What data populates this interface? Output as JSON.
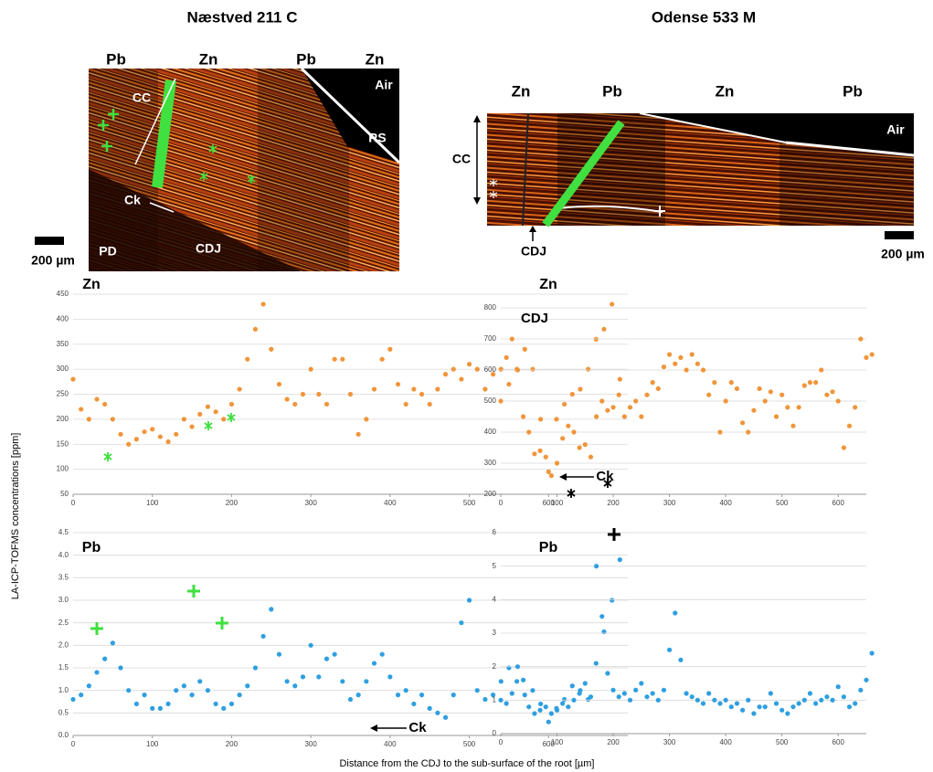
{
  "figure": {
    "ylabel": "LA-ICP-TOFMS concentrations [ppm]",
    "xlabel": "Distance from the CDJ to the sub-surface of the root [µm]"
  },
  "panels": [
    {
      "title": "Næstved 211 C",
      "column_labels": [
        "Pb",
        "Zn",
        "Pb",
        "Zn"
      ],
      "labels": [
        "CC",
        "Ck",
        "PD",
        "CDJ",
        "Air",
        "RS"
      ],
      "scale": "200 µm"
    },
    {
      "title": "Odense 533 M",
      "column_labels": [
        "Zn",
        "Pb",
        "Zn",
        "Pb"
      ],
      "labels": [
        "CC",
        "CDJ",
        "Air"
      ],
      "scale": "200 µm"
    }
  ],
  "chart_data": [
    {
      "type": "scatter",
      "title": "Zn",
      "color": "#f0953a",
      "grid": true,
      "annotation": "Ck",
      "x": [
        0,
        10,
        20,
        30,
        40,
        50,
        60,
        70,
        80,
        90,
        100,
        110,
        120,
        130,
        140,
        150,
        160,
        170,
        180,
        190,
        200,
        210,
        220,
        230,
        240,
        250,
        260,
        270,
        280,
        290,
        300,
        310,
        320,
        330,
        340,
        350,
        360,
        370,
        380,
        390,
        400,
        410,
        420,
        430,
        440,
        450,
        460,
        470,
        480,
        490,
        500,
        510,
        520,
        530,
        540,
        550,
        560,
        570,
        580,
        590,
        600,
        610,
        620,
        630,
        640,
        650,
        660,
        670,
        680,
        690
      ],
      "values": [
        280,
        220,
        200,
        240,
        230,
        200,
        170,
        150,
        160,
        175,
        180,
        165,
        155,
        170,
        200,
        185,
        210,
        225,
        215,
        200,
        230,
        260,
        320,
        380,
        430,
        340,
        270,
        240,
        230,
        250,
        300,
        250,
        230,
        320,
        320,
        250,
        170,
        200,
        260,
        320,
        340,
        270,
        230,
        260,
        250,
        230,
        260,
        290,
        300,
        280,
        310,
        300,
        260,
        290,
        300,
        270,
        300,
        340,
        300,
        200,
        95,
        200,
        230,
        250,
        260,
        300,
        360,
        380,
        430,
        280
      ],
      "xlim": [
        0,
        700
      ],
      "ylim": [
        50,
        450
      ],
      "xticks": [
        0,
        100,
        200,
        300,
        400,
        500,
        600
      ],
      "yticks": [
        50,
        100,
        150,
        200,
        250,
        300,
        350,
        400,
        450
      ]
    },
    {
      "type": "scatter",
      "title": "Zn",
      "color": "#f0953a",
      "grid": true,
      "annotation": "CDJ",
      "x": [
        0,
        10,
        20,
        30,
        40,
        50,
        60,
        70,
        80,
        90,
        100,
        110,
        120,
        130,
        140,
        150,
        160,
        170,
        180,
        190,
        200,
        210,
        220,
        230,
        240,
        250,
        260,
        270,
        280,
        290,
        300,
        310,
        320,
        330,
        340,
        350,
        360,
        370,
        380,
        390,
        400,
        410,
        420,
        430,
        440,
        450,
        460,
        470,
        480,
        490,
        500,
        510,
        520,
        530,
        540,
        550,
        560,
        570,
        580,
        590,
        600,
        610,
        620,
        630,
        640,
        650,
        660
      ],
      "values": [
        500,
        640,
        700,
        600,
        450,
        400,
        330,
        340,
        320,
        260,
        300,
        380,
        420,
        400,
        350,
        360,
        320,
        450,
        500,
        470,
        480,
        520,
        450,
        480,
        500,
        450,
        520,
        560,
        540,
        610,
        650,
        620,
        640,
        600,
        650,
        620,
        600,
        520,
        560,
        400,
        500,
        560,
        540,
        430,
        400,
        470,
        540,
        500,
        530,
        450,
        520,
        480,
        420,
        480,
        550,
        560,
        560,
        600,
        520,
        530,
        500,
        350,
        420,
        480,
        700,
        640,
        650
      ],
      "xlim": [
        0,
        650
      ],
      "ylim": [
        200,
        800
      ],
      "xticks": [
        0,
        100,
        200,
        300,
        400,
        500,
        600
      ],
      "yticks": [
        200,
        300,
        400,
        500,
        600,
        700,
        800
      ]
    },
    {
      "type": "scatter",
      "title": "Pb",
      "color": "#2e9fe0",
      "grid": true,
      "annotation": "Ck",
      "x": [
        0,
        10,
        20,
        30,
        40,
        50,
        60,
        70,
        80,
        90,
        100,
        110,
        120,
        130,
        140,
        150,
        160,
        170,
        180,
        190,
        200,
        210,
        220,
        230,
        240,
        250,
        260,
        270,
        280,
        290,
        300,
        310,
        320,
        330,
        340,
        350,
        360,
        370,
        380,
        390,
        400,
        410,
        420,
        430,
        440,
        450,
        460,
        470,
        480,
        490,
        500,
        510,
        520,
        530,
        540,
        550,
        560,
        570,
        580,
        590,
        600,
        610,
        620,
        630,
        640,
        650,
        660,
        670,
        680,
        690
      ],
      "values": [
        0.8,
        0.9,
        1.1,
        1.4,
        1.7,
        2.05,
        1.5,
        1.0,
        0.7,
        0.9,
        0.6,
        0.6,
        0.7,
        1.0,
        1.1,
        0.9,
        1.2,
        1.0,
        0.7,
        0.6,
        0.7,
        0.9,
        1.1,
        1.5,
        2.2,
        2.8,
        1.8,
        1.2,
        1.1,
        1.3,
        2.0,
        1.3,
        1.7,
        1.8,
        1.2,
        0.8,
        0.9,
        1.2,
        1.6,
        1.8,
        1.3,
        0.9,
        1.0,
        0.7,
        0.9,
        0.6,
        0.5,
        0.4,
        0.9,
        2.5,
        3.0,
        1.0,
        0.8,
        0.9,
        1.2,
        1.5,
        1.2,
        0.9,
        1.0,
        0.7,
        0.3,
        0.6,
        0.8,
        1.1,
        1.0,
        0.8,
        1.6,
        2.3,
        3.0,
        3.9
      ],
      "xlim": [
        0,
        700
      ],
      "ylim": [
        0,
        4.5
      ],
      "xticks": [
        0,
        100,
        200,
        300,
        400,
        500,
        600
      ],
      "yticks": [
        {
          "value": 0,
          "label": "0.0"
        },
        0.5,
        {
          "value": 1,
          "label": "1.0"
        },
        1.5,
        {
          "value": 2,
          "label": "2.0"
        },
        2.5,
        {
          "value": 3,
          "label": "3.0"
        },
        3.5,
        {
          "value": 4,
          "label": "4.0"
        },
        4.5
      ]
    },
    {
      "type": "scatter",
      "title": "Pb",
      "color": "#2e9fe0",
      "grid": true,
      "x": [
        0,
        10,
        20,
        30,
        40,
        50,
        60,
        70,
        80,
        90,
        100,
        110,
        120,
        130,
        140,
        150,
        160,
        170,
        180,
        190,
        200,
        210,
        220,
        230,
        240,
        250,
        260,
        270,
        280,
        290,
        300,
        310,
        320,
        330,
        340,
        350,
        360,
        370,
        380,
        390,
        400,
        410,
        420,
        430,
        440,
        450,
        460,
        470,
        480,
        490,
        500,
        510,
        520,
        530,
        540,
        550,
        560,
        570,
        580,
        590,
        600,
        610,
        620,
        630,
        640,
        650,
        660
      ],
      "values": [
        1.0,
        0.9,
        1.2,
        2.0,
        1.6,
        0.8,
        0.6,
        0.7,
        0.8,
        0.6,
        0.7,
        0.9,
        0.8,
        1.0,
        1.2,
        1.5,
        1.1,
        5.0,
        3.5,
        1.8,
        1.3,
        1.1,
        1.2,
        1.0,
        1.3,
        1.5,
        1.1,
        1.2,
        1.0,
        1.3,
        2.5,
        3.6,
        2.2,
        1.2,
        1.1,
        1.0,
        0.9,
        1.2,
        1.0,
        0.9,
        1.0,
        0.8,
        0.9,
        0.7,
        1.0,
        0.6,
        0.8,
        0.8,
        1.2,
        0.9,
        0.7,
        0.6,
        0.8,
        0.9,
        1.0,
        1.2,
        0.9,
        1.0,
        1.1,
        1.0,
        1.4,
        1.1,
        0.8,
        0.9,
        1.3,
        1.6,
        2.4
      ],
      "xlim": [
        0,
        650
      ],
      "ylim": [
        0,
        6
      ],
      "xticks": [
        0,
        100,
        200,
        300,
        400,
        500,
        600
      ],
      "yticks": [
        0,
        1,
        2,
        3,
        4,
        5,
        6
      ]
    }
  ]
}
